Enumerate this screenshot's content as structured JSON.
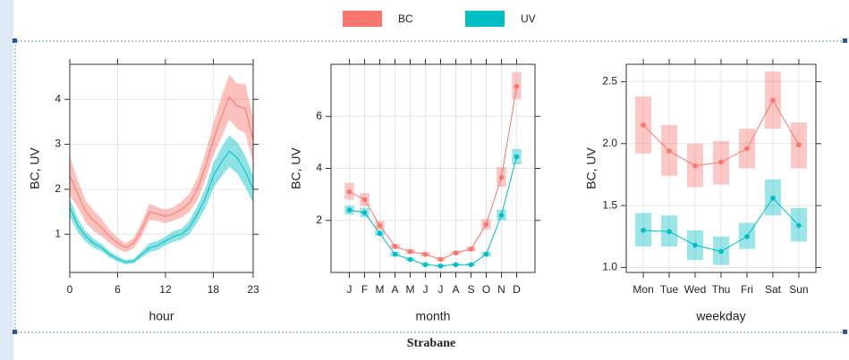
{
  "legend": [
    {
      "name": "BC",
      "color": "#f8766d"
    },
    {
      "name": "UV",
      "color": "#00bfc4"
    }
  ],
  "chart_data": [
    {
      "type": "ribbon",
      "xlabel": "hour",
      "ylabel": "BC, UV",
      "x": [
        0,
        1,
        2,
        3,
        4,
        5,
        6,
        7,
        8,
        9,
        10,
        11,
        12,
        13,
        14,
        15,
        16,
        17,
        18,
        19,
        20,
        21,
        22,
        23
      ],
      "xlim": [
        0,
        23
      ],
      "xticks": [
        0,
        6,
        12,
        18,
        23
      ],
      "ylim": [
        0.15,
        4.78
      ],
      "yticks": [
        1,
        2,
        3,
        4
      ],
      "grid": true,
      "series": [
        {
          "values": [
            2.3,
            1.9,
            1.5,
            1.3,
            1.15,
            0.95,
            0.8,
            0.7,
            0.8,
            1.1,
            1.5,
            1.45,
            1.4,
            1.45,
            1.55,
            1.7,
            2.0,
            2.5,
            3.1,
            3.6,
            4.05,
            3.85,
            3.8,
            3.1
          ],
          "lower": [
            1.85,
            1.6,
            1.25,
            1.08,
            0.95,
            0.8,
            0.68,
            0.6,
            0.68,
            0.95,
            1.32,
            1.3,
            1.25,
            1.3,
            1.37,
            1.5,
            1.75,
            2.2,
            2.75,
            3.15,
            3.55,
            3.35,
            3.25,
            2.6
          ],
          "upper": [
            2.75,
            2.2,
            1.75,
            1.52,
            1.35,
            1.1,
            0.92,
            0.8,
            0.92,
            1.25,
            1.68,
            1.6,
            1.55,
            1.6,
            1.73,
            1.9,
            2.25,
            2.8,
            3.45,
            4.05,
            4.55,
            4.35,
            4.35,
            3.6
          ]
        },
        {
          "values": [
            1.6,
            1.2,
            0.95,
            0.8,
            0.7,
            0.55,
            0.45,
            0.38,
            0.4,
            0.55,
            0.7,
            0.75,
            0.85,
            0.95,
            1.0,
            1.15,
            1.45,
            1.8,
            2.3,
            2.6,
            2.85,
            2.7,
            2.4,
            2.0
          ],
          "lower": [
            1.4,
            1.05,
            0.83,
            0.7,
            0.62,
            0.48,
            0.39,
            0.33,
            0.35,
            0.48,
            0.6,
            0.65,
            0.75,
            0.83,
            0.88,
            1.0,
            1.27,
            1.58,
            2.02,
            2.28,
            2.5,
            2.35,
            2.05,
            1.7
          ],
          "upper": [
            1.8,
            1.35,
            1.07,
            0.9,
            0.78,
            0.62,
            0.51,
            0.43,
            0.45,
            0.62,
            0.8,
            0.85,
            0.95,
            1.07,
            1.12,
            1.3,
            1.63,
            2.02,
            2.58,
            2.92,
            3.2,
            3.05,
            2.75,
            2.3
          ]
        }
      ]
    },
    {
      "type": "errorbox",
      "xlabel": "month",
      "ylabel": "BC, UV",
      "categories": [
        "J",
        "F",
        "M",
        "A",
        "M",
        "J",
        "J",
        "A",
        "S",
        "O",
        "N",
        "D"
      ],
      "ylim": [
        0,
        8
      ],
      "yticks": [
        2,
        4,
        6
      ],
      "grid": true,
      "series": [
        {
          "values": [
            3.1,
            2.8,
            1.8,
            1.0,
            0.8,
            0.7,
            0.5,
            0.75,
            0.9,
            1.85,
            3.65,
            7.15
          ],
          "lower": [
            2.8,
            2.55,
            1.65,
            0.9,
            0.72,
            0.62,
            0.44,
            0.68,
            0.82,
            1.65,
            3.3,
            6.65
          ],
          "upper": [
            3.45,
            3.05,
            1.98,
            1.1,
            0.9,
            0.78,
            0.58,
            0.83,
            1.0,
            2.05,
            4.05,
            7.7
          ]
        },
        {
          "values": [
            2.4,
            2.3,
            1.5,
            0.7,
            0.5,
            0.3,
            0.25,
            0.3,
            0.3,
            0.7,
            2.2,
            4.45
          ],
          "lower": [
            2.22,
            2.12,
            1.4,
            0.62,
            0.44,
            0.26,
            0.21,
            0.26,
            0.26,
            0.62,
            2.0,
            4.15
          ],
          "upper": [
            2.58,
            2.48,
            1.62,
            0.8,
            0.57,
            0.35,
            0.3,
            0.35,
            0.35,
            0.8,
            2.42,
            4.75
          ]
        }
      ]
    },
    {
      "type": "errorbox",
      "xlabel": "weekday",
      "ylabel": "BC, UV",
      "categories": [
        "Mon",
        "Tue",
        "Wed",
        "Thu",
        "Fri",
        "Sat",
        "Sun"
      ],
      "ylim": [
        0.96,
        2.64
      ],
      "yticks": [
        {
          "value": 1.0,
          "label": "1.0"
        },
        1.5,
        {
          "value": 2.0,
          "label": "2.0"
        },
        2.5
      ],
      "grid": true,
      "series": [
        {
          "values": [
            2.15,
            1.94,
            1.82,
            1.85,
            1.96,
            2.35,
            1.99
          ],
          "lower": [
            1.92,
            1.74,
            1.65,
            1.67,
            1.8,
            2.12,
            1.8
          ],
          "upper": [
            2.38,
            2.15,
            2.0,
            2.02,
            2.12,
            2.58,
            2.17
          ]
        },
        {
          "values": [
            1.3,
            1.29,
            1.18,
            1.13,
            1.25,
            1.56,
            1.34
          ],
          "lower": [
            1.17,
            1.17,
            1.06,
            1.02,
            1.15,
            1.42,
            1.21
          ],
          "upper": [
            1.44,
            1.42,
            1.3,
            1.25,
            1.36,
            1.71,
            1.48
          ]
        }
      ]
    }
  ],
  "caption": "Strabane"
}
